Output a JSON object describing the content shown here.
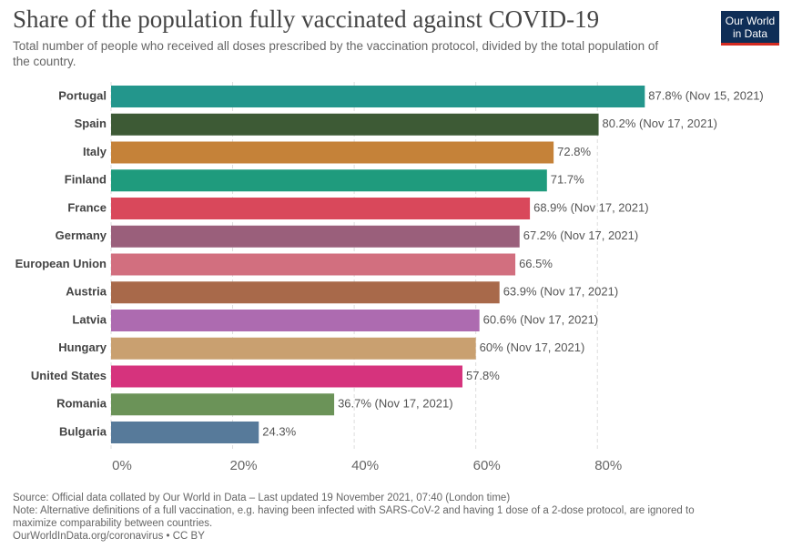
{
  "chart_data": {
    "type": "bar",
    "orientation": "horizontal",
    "title": "Share of the population fully vaccinated against COVID-19",
    "subtitle": "Total number of people who received all doses prescribed by the vaccination protocol, divided by the total population of the country.",
    "logo": "Our World in Data",
    "categories": [
      "Portugal",
      "Spain",
      "Italy",
      "Finland",
      "France",
      "Germany",
      "European Union",
      "Austria",
      "Latvia",
      "Hungary",
      "United States",
      "Romania",
      "Bulgaria"
    ],
    "values": [
      87.8,
      80.2,
      72.8,
      71.7,
      68.9,
      67.2,
      66.5,
      63.9,
      60.6,
      60,
      57.8,
      36.7,
      24.3
    ],
    "value_labels": [
      "87.8% (Nov 15, 2021)",
      "80.2% (Nov 17, 2021)",
      "72.8%",
      "71.7%",
      "68.9% (Nov 17, 2021)",
      "67.2% (Nov 17, 2021)",
      "66.5%",
      "63.9% (Nov 17, 2021)",
      "60.6% (Nov 17, 2021)",
      "60% (Nov 17, 2021)",
      "57.8%",
      "36.7% (Nov 17, 2021)",
      "24.3%"
    ],
    "colors": [
      "#23968c",
      "#3d5a35",
      "#c58239",
      "#1f9b7d",
      "#d9485b",
      "#9a5f7b",
      "#d26f7f",
      "#a8694a",
      "#ad6bb0",
      "#c9a070",
      "#d6337d",
      "#6b9358",
      "#577a9a"
    ],
    "xlim": [
      0,
      90
    ],
    "xticks": [
      {
        "value": 0,
        "label": "0%"
      },
      {
        "value": 20,
        "label": "20%"
      },
      {
        "value": 40,
        "label": "40%"
      },
      {
        "value": 60,
        "label": "60%"
      },
      {
        "value": 80,
        "label": "80%"
      }
    ],
    "grid": true,
    "source": "Source: Official data collated by Our World in Data – Last updated 19 November 2021, 07:40 (London time)",
    "note": "Note: Alternative definitions of a full vaccination, e.g. having been infected with SARS-CoV-2 and having 1 dose of a 2-dose protocol, are ignored to maximize comparability between countries.",
    "url": "OurWorldInData.org/coronavirus • CC BY"
  }
}
